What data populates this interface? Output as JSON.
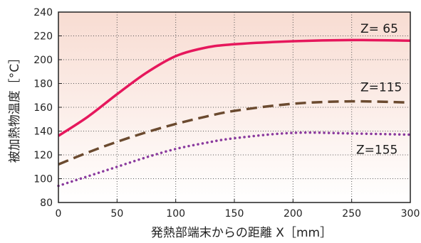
{
  "chart_data": {
    "type": "line",
    "title": "",
    "xlabel": "発熱部端末からの距離 X［mm］",
    "ylabel": "被加熱物温度［°C］",
    "xlim": [
      0,
      300
    ],
    "ylim": [
      80,
      240
    ],
    "x_ticks": [
      0,
      50,
      100,
      150,
      200,
      250,
      300
    ],
    "y_ticks": [
      80,
      100,
      120,
      140,
      160,
      180,
      200,
      220,
      240
    ],
    "grid": true,
    "series": [
      {
        "name": "Z= 65",
        "color": "#e6175c",
        "style": "solid",
        "x": [
          0,
          25,
          50,
          75,
          100,
          125,
          150,
          200,
          250,
          300
        ],
        "y": [
          136,
          152,
          171,
          189,
          203,
          210,
          213,
          215.5,
          216.5,
          216
        ]
      },
      {
        "name": "Z=115",
        "color": "#6b4a2f",
        "style": "dashed",
        "x": [
          0,
          25,
          50,
          75,
          100,
          125,
          150,
          200,
          250,
          300
        ],
        "y": [
          112,
          122,
          131,
          139,
          146,
          152,
          157,
          163,
          165,
          164
        ]
      },
      {
        "name": "Z=155",
        "color": "#8a3a9e",
        "style": "dotted",
        "x": [
          0,
          25,
          50,
          75,
          100,
          125,
          150,
          200,
          250,
          300
        ],
        "y": [
          94,
          102,
          110,
          118,
          125,
          130,
          134,
          138.5,
          138,
          137
        ]
      }
    ]
  },
  "colors": {
    "plot_gradient_top": "#f8dcd2",
    "plot_gradient_bottom": "#ffffff",
    "grid": "#555555",
    "axis": "#222222"
  }
}
